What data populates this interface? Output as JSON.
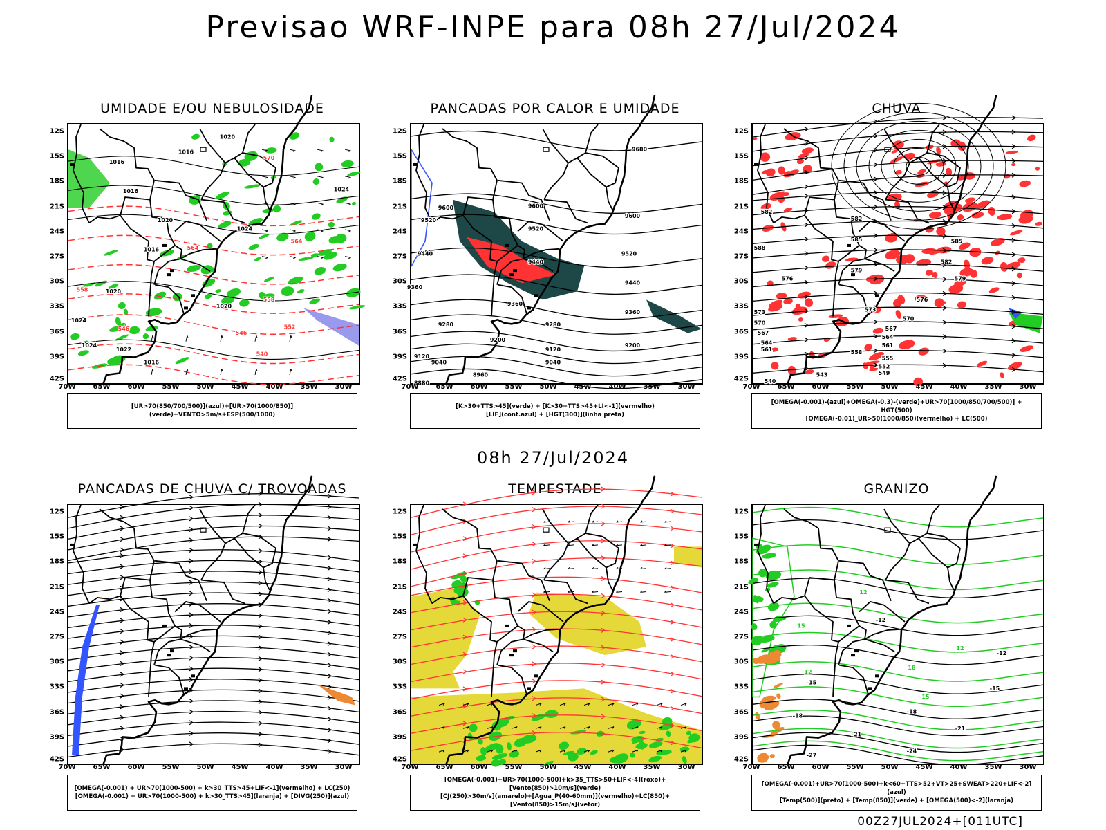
{
  "header": {
    "title": "Previsao WRF-INPE  para 08h 27/Jul/2024",
    "mid_date": "08h 27/Jul/2024",
    "footer": "00Z27JUL2024+[011UTC]"
  },
  "axes": {
    "lat_ticks": [
      "12S",
      "15S",
      "18S",
      "21S",
      "24S",
      "27S",
      "30S",
      "33S",
      "36S",
      "39S",
      "42S"
    ],
    "lon_ticks": [
      "70W",
      "65W",
      "60W",
      "55W",
      "50W",
      "45W",
      "40W",
      "35W",
      "30W"
    ],
    "lat_range": [
      -42,
      -11
    ],
    "lon_range": [
      -70,
      -28
    ]
  },
  "colors": {
    "green": "#22cc22",
    "red": "#ff3333",
    "blue": "#3355ff",
    "dark_teal": "#1e4848",
    "yellow": "#e5d93a",
    "orange": "#ee8833",
    "lavender": "#9999ee"
  },
  "chart_data": [
    {
      "type": "map",
      "title": "UMIDADE E/OU NEBULOSIDADE",
      "legend": [
        "[UR>70(850/700/500)](azul)+[UR>70(1000/850)](verde)+VENTO>5m/s+ESP(500/1000)"
      ],
      "contour_labels": [
        {
          "text": "1020",
          "lon": -47,
          "lat": -12.5,
          "color": "black"
        },
        {
          "text": "1016",
          "lon": -53,
          "lat": -14.3,
          "color": "black"
        },
        {
          "text": "1016",
          "lon": -63,
          "lat": -15.5,
          "color": "black"
        },
        {
          "text": "1016",
          "lon": -61,
          "lat": -19,
          "color": "black"
        },
        {
          "text": "1020",
          "lon": -56,
          "lat": -22.5,
          "color": "black"
        },
        {
          "text": "1024",
          "lon": -44.5,
          "lat": -23.5,
          "color": "black"
        },
        {
          "text": "1024",
          "lon": -30.5,
          "lat": -18.8,
          "color": "black"
        },
        {
          "text": "1016",
          "lon": -58,
          "lat": -26,
          "color": "black"
        },
        {
          "text": "1020",
          "lon": -63.5,
          "lat": -31,
          "color": "black"
        },
        {
          "text": "1020",
          "lon": -47.5,
          "lat": -32.8,
          "color": "black"
        },
        {
          "text": "1024",
          "lon": -68.5,
          "lat": -34.5,
          "color": "black"
        },
        {
          "text": "1024",
          "lon": -67,
          "lat": -37.5,
          "color": "black"
        },
        {
          "text": "1022",
          "lon": -62,
          "lat": -38,
          "color": "black"
        },
        {
          "text": "1016",
          "lon": -58,
          "lat": -39.5,
          "color": "black"
        },
        {
          "text": "570",
          "lon": -41,
          "lat": -15,
          "color": "red"
        },
        {
          "text": "564",
          "lon": -37,
          "lat": -25,
          "color": "red"
        },
        {
          "text": "564",
          "lon": -52,
          "lat": -25.8,
          "color": "red"
        },
        {
          "text": "558",
          "lon": -68,
          "lat": -30.8,
          "color": "red"
        },
        {
          "text": "558",
          "lon": -41,
          "lat": -32,
          "color": "red"
        },
        {
          "text": "552",
          "lon": -38,
          "lat": -35.3,
          "color": "red"
        },
        {
          "text": "546",
          "lon": -62,
          "lat": -35.5,
          "color": "red"
        },
        {
          "text": "546",
          "lon": -45,
          "lat": -36,
          "color": "red"
        },
        {
          "text": "540",
          "lon": -42,
          "lat": -38.5,
          "color": "red"
        }
      ]
    },
    {
      "type": "map",
      "title": "PANCADAS POR CALOR E UMIDADE",
      "legend": [
        "[K>30+TTS>45](verde) + [K>30+TTS>45+LI<-1](vermelho)",
        "[LIF](cont.azul) + [HGT(300)](linha preta)"
      ],
      "contour_labels": [
        {
          "text": "9680",
          "lon": -37,
          "lat": -14,
          "color": "black"
        },
        {
          "text": "9600",
          "lon": -65,
          "lat": -21,
          "color": "black"
        },
        {
          "text": "9600",
          "lon": -52,
          "lat": -20.8,
          "color": "black"
        },
        {
          "text": "9600",
          "lon": -38,
          "lat": -22,
          "color": "black"
        },
        {
          "text": "9520",
          "lon": -67.5,
          "lat": -22.5,
          "color": "black"
        },
        {
          "text": "9520",
          "lon": -52,
          "lat": -23.5,
          "color": "black"
        },
        {
          "text": "9520",
          "lon": -38.5,
          "lat": -26.5,
          "color": "black"
        },
        {
          "text": "9440",
          "lon": -68,
          "lat": -26.5,
          "color": "black"
        },
        {
          "text": "9440",
          "lon": -52,
          "lat": -27.5,
          "color": "black"
        },
        {
          "text": "9440",
          "lon": -38,
          "lat": -30,
          "color": "black"
        },
        {
          "text": "9360",
          "lon": -69.5,
          "lat": -30.5,
          "color": "black"
        },
        {
          "text": "9360",
          "lon": -55,
          "lat": -32.5,
          "color": "black"
        },
        {
          "text": "9360",
          "lon": -38,
          "lat": -33.5,
          "color": "black"
        },
        {
          "text": "9280",
          "lon": -65,
          "lat": -35,
          "color": "black"
        },
        {
          "text": "9280",
          "lon": -49.5,
          "lat": -35,
          "color": "black"
        },
        {
          "text": "9200",
          "lon": -57.5,
          "lat": -36.8,
          "color": "black"
        },
        {
          "text": "9200",
          "lon": -38,
          "lat": -37.5,
          "color": "black"
        },
        {
          "text": "9120",
          "lon": -68.5,
          "lat": -38.8,
          "color": "black"
        },
        {
          "text": "9120",
          "lon": -49.5,
          "lat": -38,
          "color": "black"
        },
        {
          "text": "9040",
          "lon": -66,
          "lat": -39.5,
          "color": "black"
        },
        {
          "text": "9040",
          "lon": -49.5,
          "lat": -39.5,
          "color": "black"
        },
        {
          "text": "8960",
          "lon": -60,
          "lat": -41,
          "color": "black"
        },
        {
          "text": "8880",
          "lon": -68.5,
          "lat": -42,
          "color": "black"
        }
      ]
    },
    {
      "type": "map",
      "title": "CHUVA",
      "legend": [
        "[OMEGA(-0.001)-(azul)+OMEGA(-0.3)-(verde)+UR>70(1000/850/700/500)] + HGT(500)",
        "[OMEGA(-0.01)_UR>50(1000/850)(vermelho) + LC(500)"
      ],
      "contour_labels": [
        {
          "text": "582",
          "lon": -68,
          "lat": -21.5,
          "color": "black"
        },
        {
          "text": "582",
          "lon": -55,
          "lat": -22.3,
          "color": "black"
        },
        {
          "text": "588",
          "lon": -69,
          "lat": -25.8,
          "color": "black"
        },
        {
          "text": "585",
          "lon": -55,
          "lat": -24.8,
          "color": "black"
        },
        {
          "text": "585",
          "lon": -40.5,
          "lat": -25,
          "color": "black"
        },
        {
          "text": "582",
          "lon": -42,
          "lat": -27.5,
          "color": "black"
        },
        {
          "text": "579",
          "lon": -55,
          "lat": -28.5,
          "color": "black"
        },
        {
          "text": "579",
          "lon": -40,
          "lat": -29.5,
          "color": "black"
        },
        {
          "text": "576",
          "lon": -65,
          "lat": -29.5,
          "color": "black"
        },
        {
          "text": "576",
          "lon": -45.5,
          "lat": -32,
          "color": "black"
        },
        {
          "text": "573",
          "lon": -53,
          "lat": -33.2,
          "color": "black"
        },
        {
          "text": "573",
          "lon": -69,
          "lat": -33.5,
          "color": "black"
        },
        {
          "text": "570",
          "lon": -69,
          "lat": -34.8,
          "color": "black"
        },
        {
          "text": "570",
          "lon": -47.5,
          "lat": -34.3,
          "color": "black"
        },
        {
          "text": "567",
          "lon": -68.5,
          "lat": -36,
          "color": "black"
        },
        {
          "text": "567",
          "lon": -50,
          "lat": -35.5,
          "color": "black"
        },
        {
          "text": "564",
          "lon": -68,
          "lat": -37.2,
          "color": "black"
        },
        {
          "text": "564",
          "lon": -50.5,
          "lat": -36.5,
          "color": "black"
        },
        {
          "text": "561",
          "lon": -68,
          "lat": -38,
          "color": "black"
        },
        {
          "text": "561",
          "lon": -50.5,
          "lat": -37.5,
          "color": "black"
        },
        {
          "text": "558",
          "lon": -55,
          "lat": -38.3,
          "color": "black"
        },
        {
          "text": "555",
          "lon": -50.5,
          "lat": -39,
          "color": "black"
        },
        {
          "text": "552",
          "lon": -51,
          "lat": -40,
          "color": "black"
        },
        {
          "text": "549",
          "lon": -51,
          "lat": -40.8,
          "color": "black"
        },
        {
          "text": "543",
          "lon": -60,
          "lat": -41,
          "color": "black"
        },
        {
          "text": "540",
          "lon": -67.5,
          "lat": -41.8,
          "color": "black"
        }
      ]
    },
    {
      "type": "map",
      "title": "PANCADAS DE CHUVA C/ TROVOADAS",
      "legend": [
        "[OMEGA(-0.001) + UR>70(1000-500) + k>30_TTS>45+LIF<-1](vermelho) + LC(250)",
        "[OMEGA(-0.001) + UR>70(1000-500) + k>30_TTS>45](laranja) + [DIVG(250)](azul)"
      ],
      "contour_labels": []
    },
    {
      "type": "map",
      "title": "TEMPESTADE",
      "legend": [
        "[OMEGA(-0.001)+UR>70(1000-500)+k>35_TTS>50+LIF<-4](roxo)+[Vento(850)>10m/s](verde)",
        "[CJ(250)>30m/s](amarelo)+[Agua_P(40-60mm)](vermelho)+LC(850)+[Vento(850)>15m/s](vetor)"
      ],
      "contour_labels": []
    },
    {
      "type": "map",
      "title": "GRANIZO",
      "legend": [
        "[OMEGA(-0.001)+UR>70(1000-500)+k<60+TTS>52+VT>25+SWEAT>220+LIF<-2](azul)",
        "[Temp(500)](preto) + [Temp(850)](verde) + [OMEGA(500)<-2](laranja)"
      ],
      "contour_labels": [
        {
          "text": "-12",
          "lon": -51.5,
          "lat": -24.8,
          "color": "black"
        },
        {
          "text": "-12",
          "lon": -34,
          "lat": -28.8,
          "color": "black"
        },
        {
          "text": "-15",
          "lon": -61.5,
          "lat": -32.3,
          "color": "black"
        },
        {
          "text": "-15",
          "lon": -35,
          "lat": -33,
          "color": "black"
        },
        {
          "text": "-18",
          "lon": -63.5,
          "lat": -36.3,
          "color": "black"
        },
        {
          "text": "-18",
          "lon": -47,
          "lat": -35.8,
          "color": "black"
        },
        {
          "text": "-21",
          "lon": -55,
          "lat": -38.5,
          "color": "black"
        },
        {
          "text": "-21",
          "lon": -40,
          "lat": -37.8,
          "color": "black"
        },
        {
          "text": "-24",
          "lon": -47,
          "lat": -40.5,
          "color": "black"
        },
        {
          "text": "-27",
          "lon": -61.5,
          "lat": -41,
          "color": "black"
        },
        {
          "text": "15",
          "lon": -63,
          "lat": -25.5,
          "color": "green"
        },
        {
          "text": "12",
          "lon": -54,
          "lat": -21.5,
          "color": "green"
        },
        {
          "text": "12",
          "lon": -40,
          "lat": -28.2,
          "color": "green"
        },
        {
          "text": "12",
          "lon": -62,
          "lat": -31,
          "color": "green"
        },
        {
          "text": "18",
          "lon": -47,
          "lat": -30.5,
          "color": "green"
        },
        {
          "text": "15",
          "lon": -45,
          "lat": -34,
          "color": "green"
        }
      ]
    }
  ]
}
